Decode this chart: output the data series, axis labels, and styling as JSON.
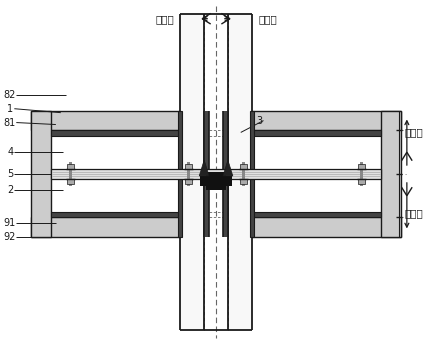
{
  "bg_color": "#ffffff",
  "lc": "#1a1a1a",
  "dc": "#666666",
  "dark_gray": "#444444",
  "med_gray": "#888888",
  "light_gray": "#cccccc",
  "black": "#111111",
  "labels": {
    "left_module": "左模块",
    "right_module": "右模块",
    "upper_module": "上模块",
    "lower_module": "下模块"
  },
  "numbers": [
    "82",
    "1",
    "81",
    "4",
    "5",
    "2",
    "91",
    "92",
    "3"
  ]
}
